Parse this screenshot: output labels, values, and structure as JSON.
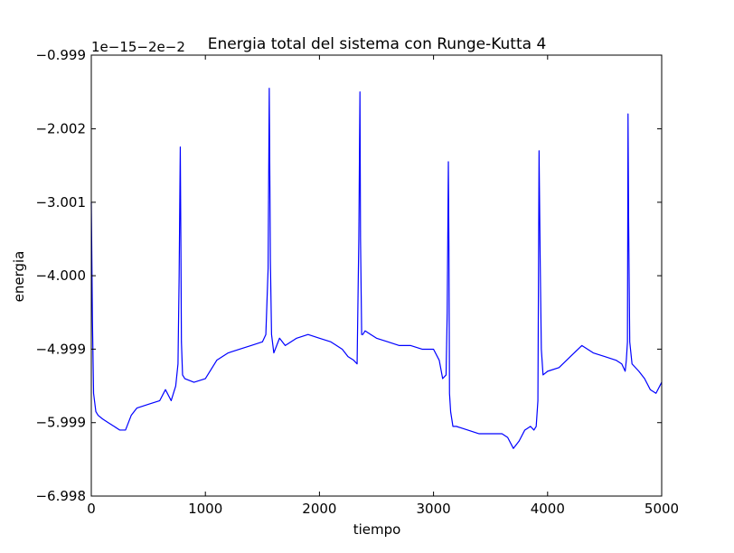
{
  "chart_data": {
    "type": "line",
    "title": "Energia total del sistema con Runge-Kutta 4",
    "xlabel": "tiempo",
    "ylabel": "energia",
    "offset_label": "1e−15−2e−2",
    "xlim": [
      0,
      5000
    ],
    "ylim": [
      -6.998,
      -0.999
    ],
    "x_ticks": [
      0,
      1000,
      2000,
      3000,
      4000,
      5000
    ],
    "x_tick_labels": [
      "0",
      "1000",
      "2000",
      "3000",
      "4000",
      "5000"
    ],
    "y_ticks": [
      -0.999,
      -2.002,
      -3.001,
      -4.0,
      -4.999,
      -5.999,
      -6.998
    ],
    "y_tick_labels": [
      "−0.999",
      "−2.002",
      "−3.001",
      "−4.000",
      "−4.999",
      "−5.999",
      "−6.998"
    ],
    "grid": false,
    "series": [
      {
        "color": "#0000ff",
        "x": [
          0,
          10,
          20,
          40,
          60,
          100,
          150,
          200,
          250,
          300,
          350,
          400,
          500,
          600,
          650,
          700,
          740,
          760,
          770,
          780,
          785,
          790,
          800,
          820,
          900,
          1000,
          1100,
          1200,
          1300,
          1400,
          1500,
          1530,
          1550,
          1560,
          1570,
          1580,
          1600,
          1650,
          1700,
          1800,
          1900,
          2000,
          2100,
          2200,
          2250,
          2300,
          2330,
          2345,
          2355,
          2360,
          2370,
          2380,
          2400,
          2450,
          2500,
          2600,
          2700,
          2800,
          2900,
          3000,
          3050,
          3080,
          3110,
          3120,
          3130,
          3135,
          3140,
          3150,
          3160,
          3170,
          3200,
          3300,
          3400,
          3500,
          3600,
          3650,
          3700,
          3750,
          3800,
          3850,
          3880,
          3900,
          3915,
          3925,
          3935,
          3945,
          3960,
          4000,
          4100,
          4200,
          4300,
          4400,
          4500,
          4600,
          4650,
          4680,
          4690,
          4700,
          4705,
          4710,
          4720,
          4740,
          4800,
          4850,
          4900,
          4950,
          5000
        ],
        "y": [
          -3.0,
          -4.6,
          -5.6,
          -5.85,
          -5.9,
          -5.95,
          -6.0,
          -6.05,
          -6.1,
          -6.1,
          -5.9,
          -5.8,
          -5.75,
          -5.7,
          -5.55,
          -5.7,
          -5.5,
          -5.2,
          -4.0,
          -2.25,
          -3.5,
          -4.9,
          -5.35,
          -5.4,
          -5.45,
          -5.4,
          -5.15,
          -5.05,
          -5.0,
          -4.95,
          -4.9,
          -4.8,
          -3.9,
          -1.45,
          -3.8,
          -4.8,
          -5.05,
          -4.85,
          -4.95,
          -4.85,
          -4.8,
          -4.85,
          -4.9,
          -5.0,
          -5.1,
          -5.15,
          -5.2,
          -3.5,
          -1.5,
          -3.5,
          -4.8,
          -4.8,
          -4.75,
          -4.8,
          -4.85,
          -4.9,
          -4.95,
          -4.95,
          -5.0,
          -5.0,
          -5.15,
          -5.4,
          -5.35,
          -4.5,
          -2.45,
          -3.6,
          -5.6,
          -5.85,
          -5.95,
          -6.05,
          -6.05,
          -6.1,
          -6.15,
          -6.15,
          -6.15,
          -6.2,
          -6.35,
          -6.25,
          -6.1,
          -6.05,
          -6.1,
          -6.05,
          -5.7,
          -2.3,
          -3.8,
          -5.0,
          -5.35,
          -5.3,
          -5.25,
          -5.1,
          -4.95,
          -5.05,
          -5.1,
          -5.15,
          -5.2,
          -5.3,
          -5.15,
          -4.9,
          -1.8,
          -3.2,
          -4.9,
          -5.2,
          -5.3,
          -5.4,
          -5.55,
          -5.6,
          -5.45
        ]
      }
    ]
  }
}
